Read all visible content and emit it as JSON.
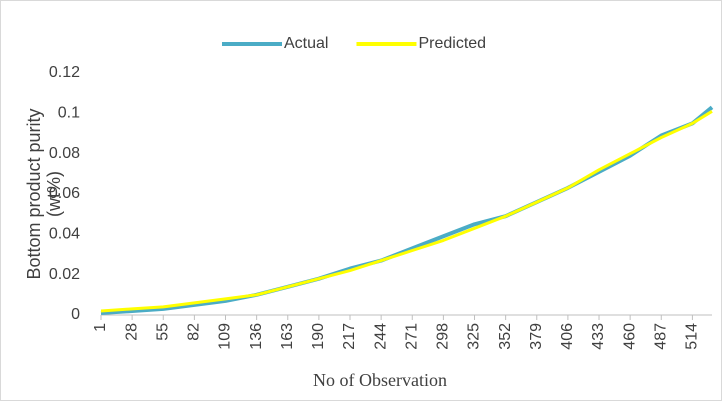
{
  "chart_data": {
    "type": "line",
    "ylabel": [
      "Bottom product purity",
      "(wt%)"
    ],
    "xlabel": "No of Observation",
    "x": [
      1,
      28,
      55,
      82,
      109,
      136,
      163,
      190,
      217,
      244,
      271,
      298,
      325,
      352,
      379,
      406,
      433,
      460,
      487,
      514,
      531
    ],
    "series": [
      {
        "name": "Actual",
        "color": "#4bacc6",
        "values": [
          0.001,
          0.002,
          0.003,
          0.005,
          0.007,
          0.01,
          0.014,
          0.018,
          0.023,
          0.027,
          0.033,
          0.039,
          0.045,
          0.049,
          0.056,
          0.063,
          0.071,
          0.079,
          0.089,
          0.095,
          0.103
        ]
      },
      {
        "name": "Predicted",
        "color": "#ffff00",
        "values": [
          0.002,
          0.003,
          0.004,
          0.006,
          0.008,
          0.01,
          0.014,
          0.018,
          0.022,
          0.027,
          0.032,
          0.037,
          0.043,
          0.049,
          0.056,
          0.063,
          0.072,
          0.08,
          0.088,
          0.095,
          0.101
        ]
      }
    ],
    "xlim": [
      1,
      531
    ],
    "xticks": [
      1,
      28,
      55,
      82,
      109,
      136,
      163,
      190,
      217,
      244,
      271,
      298,
      325,
      352,
      379,
      406,
      433,
      460,
      487,
      514
    ],
    "ylim": [
      0,
      0.12
    ],
    "yticks": [
      0,
      0.02,
      0.04,
      0.06,
      0.08,
      0.1,
      0.12
    ],
    "grid": false,
    "legend": "top"
  }
}
